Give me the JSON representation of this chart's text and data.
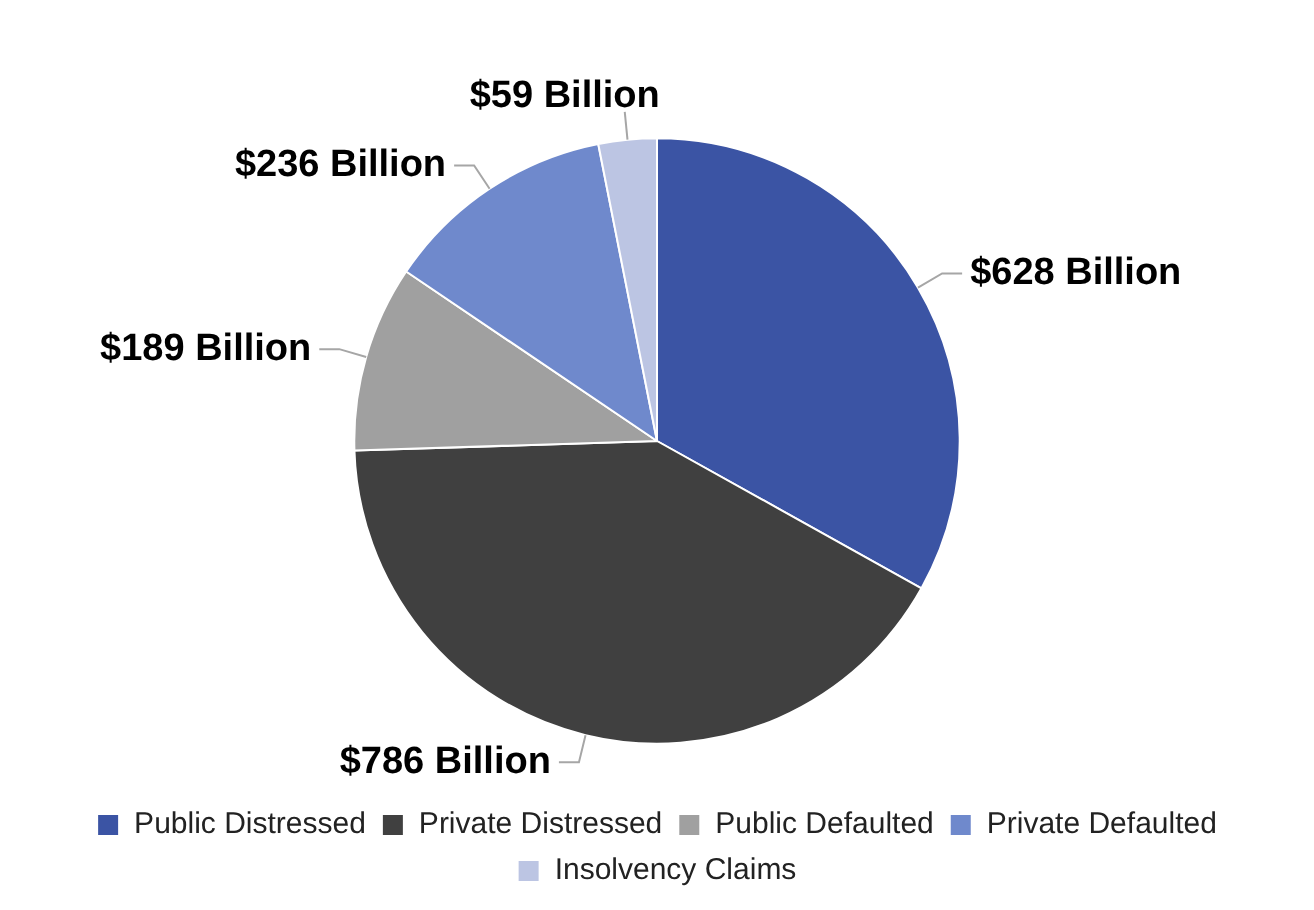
{
  "chart_data": {
    "type": "pie",
    "categories": [
      "Public Distressed",
      "Private Distressed",
      "Public Defaulted",
      "Private Defaulted",
      "Insolvency Claims"
    ],
    "values": [
      628,
      786,
      189,
      236,
      59
    ],
    "colors": [
      "#3b54a4",
      "#404040",
      "#a0a0a0",
      "#6f89cc",
      "#bcc5e3"
    ],
    "value_labels": [
      "$628 Billion",
      "$786 Billion",
      "$189 Billion",
      "$236 Billion",
      "$59 Billion"
    ],
    "legend": "bottom"
  }
}
